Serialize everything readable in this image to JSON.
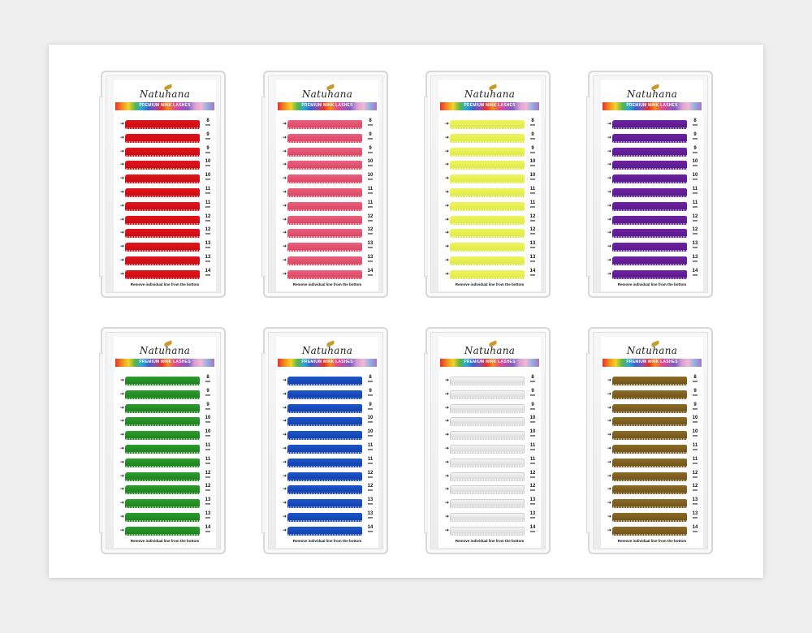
{
  "brand": "Natuhana",
  "tagline": "PREMIUM MINK LASHES",
  "footer_text": "Remove individual line from the bottom",
  "unit": "mm",
  "lengths": [
    "8",
    "9",
    "9",
    "10",
    "10",
    "11",
    "11",
    "12",
    "12",
    "13",
    "13",
    "14"
  ],
  "trays": [
    {
      "color_name": "red",
      "color": "#e3141b",
      "shade": "#c40c12"
    },
    {
      "color_name": "pink",
      "color": "#e8607e",
      "shade": "#d9445f"
    },
    {
      "color_name": "yellow",
      "color": "#eef55c",
      "shade": "#dde84a"
    },
    {
      "color_name": "purple",
      "color": "#6e22a3",
      "shade": "#561a87"
    },
    {
      "color_name": "green",
      "color": "#2c9d2c",
      "shade": "#1d7d1d"
    },
    {
      "color_name": "blue",
      "color": "#1b55cc",
      "shade": "#123fa5"
    },
    {
      "color_name": "white",
      "color": "#f4f4f4",
      "shade": "#d6d6d6"
    },
    {
      "color_name": "brown",
      "color": "#8c6b26",
      "shade": "#6e5018"
    }
  ]
}
